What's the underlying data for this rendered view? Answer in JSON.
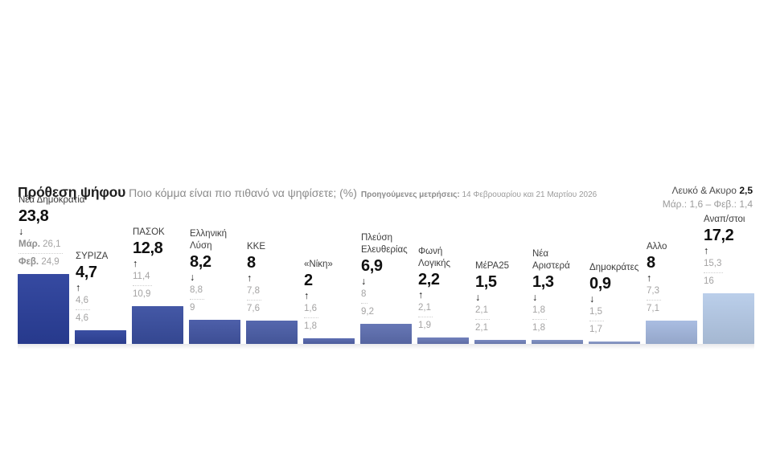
{
  "header": {
    "title": "Πρόθεση ψήφου",
    "subtitle": "Ποιο κόμμα είναι πιο πιθανό να ψηφίσετε; (%)",
    "note_label": "Προηγούμενες μετρήσεις:",
    "note_text": "14 Φεβρουαρίου και 21 Μαρτίου 2026",
    "aside": {
      "label": "Λευκό & Ακυρο",
      "value": "2,5",
      "history": "Μάρ.: 1,6 – Φεβ.: 1,4"
    }
  },
  "chart_data": {
    "type": "bar",
    "title": "Πρόθεση ψήφου",
    "question": "Ποιο κόμμα είναι πιο πιθανό να ψηφίσετε; (%)",
    "unit": "%",
    "ylim": [
      0,
      26
    ],
    "grid": false,
    "legend": "none",
    "previous_measurements": [
      "14 Φεβρουαρίου",
      "21 Μαρτίου 2026"
    ],
    "series": [
      {
        "name": "Νέα Δημοκρατία",
        "value": 23.8,
        "display": "23,8",
        "trend": "down",
        "prev1_label": "Μάρ.",
        "prev1": "26,1",
        "prev2_label": "Φεβ.",
        "prev2": "24,9",
        "color": "#2b409c"
      },
      {
        "name": "ΣΥΡΙΖΑ",
        "value": 4.7,
        "display": "4,7",
        "trend": "up",
        "prev1_label": "",
        "prev1": "4,6",
        "prev2_label": "",
        "prev2": "4,6",
        "color": "#30459d"
      },
      {
        "name": "ΠΑΣΟΚ",
        "value": 12.8,
        "display": "12,8",
        "trend": "up",
        "prev1_label": "",
        "prev1": "11,4",
        "prev2_label": "",
        "prev2": "10,9",
        "color": "#3a4fa1"
      },
      {
        "name": "Ελληνική\nΛύση",
        "value": 8.2,
        "display": "8,2",
        "trend": "down",
        "prev1_label": "",
        "prev1": "8,8",
        "prev2_label": "",
        "prev2": "9",
        "color": "#4457a5"
      },
      {
        "name": "ΚΚΕ",
        "value": 8,
        "display": "8",
        "trend": "up",
        "prev1_label": "",
        "prev1": "7,8",
        "prev2_label": "",
        "prev2": "7,6",
        "color": "#4c5fa9"
      },
      {
        "name": "«Νίκη»",
        "value": 2,
        "display": "2",
        "trend": "up",
        "prev1_label": "",
        "prev1": "1,6",
        "prev2_label": "",
        "prev2": "1,8",
        "color": "#5566ad"
      },
      {
        "name": "Πλεύση\nΕλευθερίας",
        "value": 6.9,
        "display": "6,9",
        "trend": "down",
        "prev1_label": "",
        "prev1": "8",
        "prev2_label": "",
        "prev2": "9,2",
        "color": "#5f70b2"
      },
      {
        "name": "Φωνή\nΛογικής",
        "value": 2.2,
        "display": "2,2",
        "trend": "up",
        "prev1_label": "",
        "prev1": "2,1",
        "prev2_label": "",
        "prev2": "1,9",
        "color": "#6979b7"
      },
      {
        "name": "ΜέΡΑ25",
        "value": 1.5,
        "display": "1,5",
        "trend": "down",
        "prev1_label": "",
        "prev1": "2,1",
        "prev2_label": "",
        "prev2": "2,1",
        "color": "#7384bd"
      },
      {
        "name": "Νέα\nΑριστερά",
        "value": 1.3,
        "display": "1,3",
        "trend": "down",
        "prev1_label": "",
        "prev1": "1,8",
        "prev2_label": "",
        "prev2": "1,8",
        "color": "#7d8ec3"
      },
      {
        "name": "Δημοκράτες",
        "value": 0.9,
        "display": "0,9",
        "trend": "down",
        "prev1_label": "",
        "prev1": "1,5",
        "prev2_label": "",
        "prev2": "1,7",
        "color": "#8798c9"
      },
      {
        "name": "Αλλο",
        "value": 8,
        "display": "8",
        "trend": "up",
        "prev1_label": "",
        "prev1": "7,3",
        "prev2_label": "",
        "prev2": "7,1",
        "color": "#a5b9e0"
      },
      {
        "name": "Αναπ/στοι",
        "value": 17.2,
        "display": "17,2",
        "trend": "up",
        "prev1_label": "",
        "prev1": "15,3",
        "prev2_label": "",
        "prev2": "16",
        "color": "#b7cce9"
      }
    ]
  }
}
